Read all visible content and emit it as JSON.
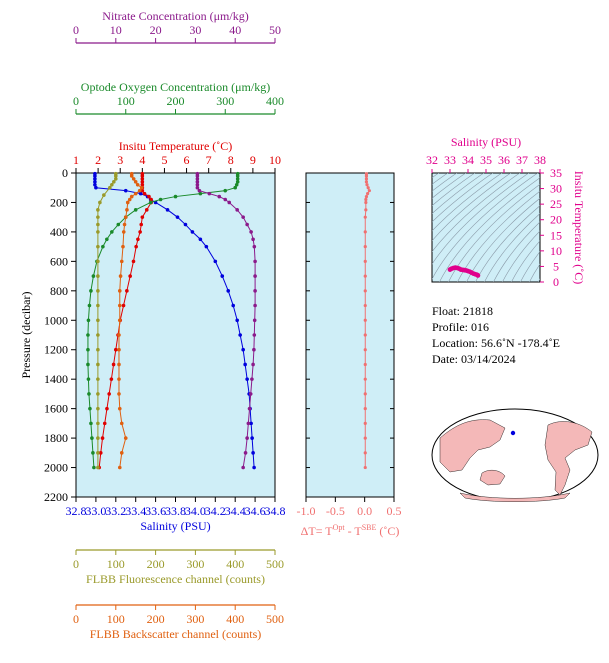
{
  "chart_data": [
    {
      "type": "line",
      "panel": "main-profile",
      "ylabel": "Pressure (decibar)",
      "y_ticks": [
        0,
        200,
        400,
        600,
        800,
        1000,
        1200,
        1400,
        1600,
        1800,
        2000,
        2200
      ],
      "ylim": [
        0,
        2200
      ],
      "y_reversed": true,
      "background": "#cfeef7",
      "axes": {
        "nitrate": {
          "label": "Nitrate Concentration (μm/kg)",
          "range": [
            0,
            50
          ],
          "ticks": [
            0,
            10,
            20,
            30,
            40,
            50
          ],
          "color": "#8b1a8b",
          "position": "top-1"
        },
        "oxygen": {
          "label": "Optode Oxygen Concentration (μm/kg)",
          "range": [
            0,
            400
          ],
          "ticks": [
            0,
            100,
            200,
            300,
            400
          ],
          "color": "#1a8a2a",
          "position": "top-2"
        },
        "temperature": {
          "label": "Insitu Temperature (˚C)",
          "range": [
            1,
            10
          ],
          "ticks": [
            1,
            2,
            3,
            4,
            5,
            6,
            7,
            8,
            9,
            10
          ],
          "color": "#e00000",
          "position": "top-frame"
        },
        "salinity": {
          "label": "Salinity (PSU)",
          "range": [
            32.8,
            34.8
          ],
          "ticks": [
            "32.8",
            "33.0",
            "33.2",
            "33.4",
            "33.6",
            "33.8",
            "34.0",
            "34.2",
            "34.4",
            "34.6",
            "34.8"
          ],
          "color": "#0000dd",
          "position": "bottom-frame"
        },
        "fluorescence": {
          "label": "FLBB Fluorescence channel (counts)",
          "range": [
            0,
            500
          ],
          "ticks": [
            0,
            100,
            200,
            300,
            400,
            500
          ],
          "color": "#9a9a2a",
          "position": "bottom-1"
        },
        "backscatter": {
          "label": "FLBB Backscatter channel (counts)",
          "range": [
            0,
            500
          ],
          "ticks": [
            0,
            100,
            200,
            300,
            400,
            500
          ],
          "color": "#e06010",
          "position": "bottom-2"
        }
      },
      "series": [
        {
          "axis": "salinity",
          "color": "#0000dd",
          "p": [
            5,
            20,
            40,
            60,
            80,
            100,
            120,
            140,
            160,
            180,
            200,
            250,
            300,
            350,
            400,
            450,
            500,
            600,
            700,
            800,
            900,
            1000,
            1100,
            1200,
            1300,
            1400,
            1500,
            1600,
            1700,
            1800,
            1900,
            2000
          ],
          "values": [
            32.99,
            32.99,
            32.99,
            32.99,
            32.99,
            33.0,
            33.3,
            33.45,
            33.52,
            33.55,
            33.6,
            33.72,
            33.82,
            33.9,
            33.97,
            34.05,
            34.11,
            34.2,
            34.27,
            34.33,
            34.38,
            34.42,
            34.45,
            34.48,
            34.5,
            34.52,
            34.54,
            34.55,
            34.56,
            34.57,
            34.58,
            34.59
          ]
        },
        {
          "axis": "temperature",
          "color": "#e00000",
          "p": [
            5,
            20,
            40,
            60,
            80,
            100,
            120,
            140,
            160,
            180,
            200,
            250,
            300,
            350,
            400,
            450,
            500,
            600,
            700,
            800,
            900,
            1000,
            1100,
            1200,
            1300,
            1400,
            1500,
            1600,
            1700,
            1800,
            1900,
            2000
          ],
          "values": [
            4.0,
            4.0,
            4.0,
            4.0,
            4.0,
            4.0,
            4.0,
            4.1,
            4.3,
            4.4,
            4.4,
            4.2,
            4.0,
            3.95,
            3.9,
            3.8,
            3.72,
            3.6,
            3.45,
            3.3,
            3.15,
            3.0,
            2.9,
            2.8,
            2.7,
            2.6,
            2.5,
            2.4,
            2.3,
            2.2,
            2.12,
            2.05
          ]
        },
        {
          "axis": "oxygen",
          "color": "#1a8a2a",
          "p": [
            5,
            20,
            40,
            60,
            80,
            100,
            120,
            140,
            160,
            180,
            200,
            250,
            300,
            350,
            400,
            450,
            500,
            600,
            700,
            800,
            900,
            1000,
            1100,
            1200,
            1300,
            1400,
            1500,
            1600,
            1700,
            1800,
            1900,
            2000
          ],
          "values": [
            325,
            325,
            325,
            325,
            323,
            320,
            300,
            250,
            200,
            170,
            150,
            120,
            100,
            85,
            72,
            62,
            54,
            42,
            35,
            30,
            27,
            25,
            24,
            24,
            24,
            25,
            26,
            28,
            30,
            32,
            34,
            36
          ]
        },
        {
          "axis": "nitrate",
          "color": "#8b1a8b",
          "p": [
            5,
            20,
            40,
            60,
            80,
            100,
            120,
            140,
            160,
            180,
            200,
            250,
            300,
            350,
            400,
            450,
            500,
            600,
            700,
            800,
            900,
            1000,
            1100,
            1200,
            1300,
            1400,
            1500,
            1600,
            1700,
            1800,
            1900,
            2000
          ],
          "values": [
            30.5,
            30.5,
            30.5,
            30.5,
            30.5,
            30.5,
            31.0,
            33.5,
            36.0,
            37.5,
            38.5,
            40.5,
            42.0,
            43.0,
            44.0,
            44.5,
            44.8,
            45.0,
            45.0,
            45.0,
            45.0,
            44.9,
            44.8,
            44.7,
            44.5,
            44.2,
            43.9,
            43.6,
            43.3,
            43.0,
            42.6,
            42.0
          ]
        },
        {
          "axis": "fluorescence",
          "color": "#9a9a2a",
          "p": [
            5,
            20,
            40,
            60,
            80,
            100,
            150,
            200,
            250,
            300,
            350,
            400,
            500,
            600,
            700,
            800,
            900,
            1000,
            1100,
            1200,
            1300,
            1400,
            1500,
            1600,
            1700,
            1800,
            1900,
            2000
          ],
          "values": [
            100,
            100,
            100,
            95,
            90,
            85,
            70,
            60,
            55,
            55,
            55,
            55,
            55,
            55,
            55,
            55,
            55,
            55,
            55,
            55,
            55,
            55,
            55,
            55,
            55,
            55,
            55,
            55
          ]
        },
        {
          "axis": "backscatter",
          "color": "#e06010",
          "p": [
            5,
            20,
            40,
            60,
            80,
            100,
            120,
            140,
            160,
            180,
            200,
            250,
            300,
            350,
            400,
            500,
            600,
            700,
            800,
            900,
            1000,
            1100,
            1200,
            1300,
            1400,
            1500,
            1600,
            1700,
            1800,
            1900,
            2000
          ],
          "values": [
            140,
            140,
            145,
            150,
            155,
            165,
            160,
            150,
            140,
            135,
            130,
            128,
            125,
            122,
            120,
            118,
            115,
            112,
            110,
            110,
            110,
            108,
            108,
            108,
            108,
            108,
            110,
            115,
            125,
            115,
            110
          ]
        }
      ]
    },
    {
      "type": "line",
      "panel": "delta-t",
      "xlabel": "ΔT= T^Opt - T^SBE (˚C)",
      "xlabel_main": "ΔT= T",
      "xlabel_sup1": "Opt",
      "xlabel_mid": " - T",
      "xlabel_sup2": "SBE",
      "xlabel_end": " (˚C)",
      "xlim": [
        -1.0,
        0.5
      ],
      "x_ticks": [
        "-1.0",
        "-0.5",
        "0.0",
        "0.5"
      ],
      "color": "#f07070",
      "series": [
        {
          "name": "",
          "p": [
            5,
            20,
            40,
            60,
            80,
            100,
            120,
            140,
            160,
            180,
            200,
            250,
            300,
            400,
            500,
            600,
            700,
            800,
            900,
            1000,
            1100,
            1200,
            1300,
            1400,
            1500,
            1600,
            1700,
            1800,
            1900,
            2000
          ],
          "values": [
            0.03,
            0.03,
            0.03,
            0.03,
            0.04,
            0.06,
            0.08,
            0.05,
            0.03,
            0.02,
            0.02,
            0.02,
            0.01,
            0.01,
            0.01,
            0.01,
            0.01,
            0.01,
            0.01,
            0.01,
            0.01,
            0.01,
            0.01,
            0.01,
            0.01,
            0.01,
            0.01,
            0.01,
            0.01,
            0.01
          ]
        }
      ]
    },
    {
      "type": "scatter",
      "panel": "ts-diagram",
      "title": "Salinity (PSU)",
      "ylabel": "Insitu Temperature (˚C)",
      "xlim": [
        32,
        38
      ],
      "ylim": [
        0,
        35
      ],
      "x_ticks": [
        32,
        33,
        34,
        35,
        36,
        37,
        38
      ],
      "y_ticks": [
        0,
        5,
        10,
        15,
        20,
        25,
        30,
        35
      ],
      "color": "#e0008c",
      "points_s": [
        33.0,
        33.1,
        33.2,
        33.3,
        33.4,
        33.5,
        33.6,
        33.7,
        33.8,
        33.9,
        34.0,
        34.1,
        34.2,
        34.3,
        34.4,
        34.5,
        34.55
      ],
      "points_t": [
        4.0,
        4.3,
        4.5,
        4.6,
        4.5,
        4.3,
        4.0,
        3.9,
        3.8,
        3.7,
        3.5,
        3.3,
        3.0,
        2.7,
        2.5,
        2.3,
        2.1
      ]
    }
  ],
  "info": {
    "float_line": "Float:  21818",
    "profile_line": "Profile:  016",
    "location_line": "Location:  56.6˚N  -178.4˚E",
    "date_line": "Date:  03/14/2024"
  },
  "map": {
    "float_marker_color": "#0000dd",
    "land_color": "#f4b8b8",
    "ocean_color": "#ffffff"
  }
}
